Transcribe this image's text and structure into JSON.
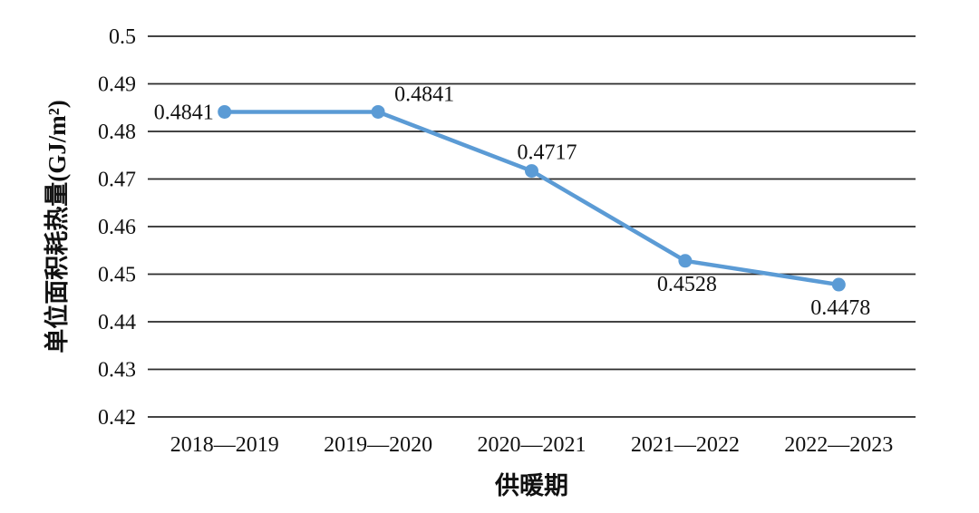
{
  "chart_data": {
    "type": "line",
    "title": "",
    "xlabel": "供暖期",
    "ylabel": "单位面积耗热量(GJ/m²)",
    "categories": [
      "2018—2019",
      "2019—2020",
      "2020—2021",
      "2021—2022",
      "2022—2023"
    ],
    "series": [
      {
        "name": "单位面积耗热量",
        "values": [
          0.4841,
          0.4841,
          0.4717,
          0.4528,
          0.4478
        ],
        "data_labels": [
          "0.4841",
          "0.4841",
          "0.4717",
          "0.4528",
          "0.4478"
        ],
        "label_placements": [
          "left",
          "above-right",
          "above",
          "below",
          "below"
        ]
      }
    ],
    "ylim": [
      0.42,
      0.5
    ],
    "ytick_step": 0.01,
    "ytick_labels": [
      "0.5",
      "0.49",
      "0.48",
      "0.47",
      "0.46",
      "0.45",
      "0.44",
      "0.43",
      "0.42"
    ],
    "ytick_values": [
      0.5,
      0.49,
      0.48,
      0.47,
      0.46,
      0.45,
      0.44,
      0.43,
      0.42
    ],
    "grid": "horizontal",
    "legend": "none",
    "colors": {
      "line": "#5b9bd5",
      "marker": "#5b9bd5",
      "gridline": "#2a2a2a",
      "text": "#111111",
      "background": "#ffffff"
    },
    "marker": "circle"
  }
}
